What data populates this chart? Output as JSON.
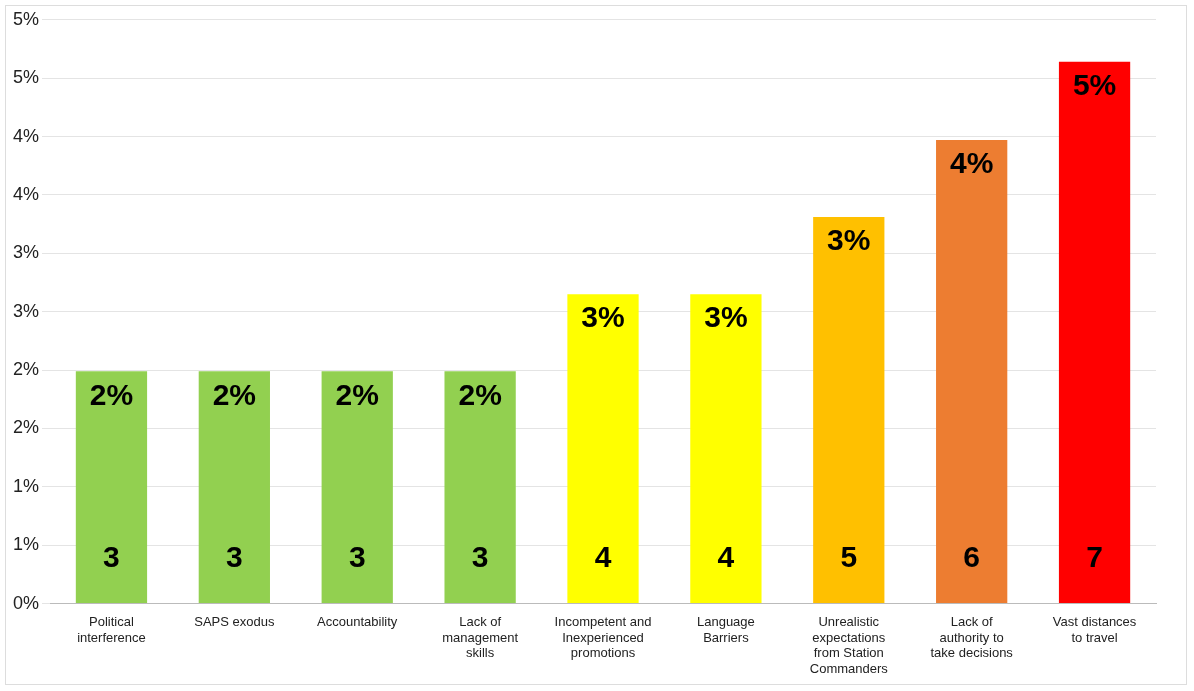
{
  "chart_data": {
    "type": "bar",
    "categories": [
      "Political interference",
      "SAPS exodus",
      "Accountability",
      "Lack of management skills",
      "Incompetent and Inexperienced promotions",
      "Language Barriers",
      "Unrealistic expectations from Station Commanders",
      "Lack of authority to take decisions",
      "Vast distances to travel"
    ],
    "values": [
      1.99,
      1.99,
      1.99,
      1.99,
      2.65,
      2.65,
      3.31,
      3.97,
      4.64
    ],
    "colors": [
      "#92d050",
      "#92d050",
      "#92d050",
      "#92d050",
      "#ffff00",
      "#ffff00",
      "#ffc000",
      "#ed7d31",
      "#ff0000"
    ],
    "value_labels": [
      "2%",
      "2%",
      "2%",
      "2%",
      "3%",
      "3%",
      "3%",
      "4%",
      "5%"
    ],
    "annotations": [
      "3",
      "3",
      "3",
      "3",
      "4",
      "4",
      "5",
      "6",
      "7"
    ],
    "ylim": [
      0,
      5
    ],
    "yticks": [
      {
        "value": 0,
        "label": "0%"
      },
      {
        "value": 0.5,
        "label": "1%"
      },
      {
        "value": 1,
        "label": "1%"
      },
      {
        "value": 1.5,
        "label": "2%"
      },
      {
        "value": 2,
        "label": "2%"
      },
      {
        "value": 2.5,
        "label": "3%"
      },
      {
        "value": 3,
        "label": "3%"
      },
      {
        "value": 3.5,
        "label": "4%"
      },
      {
        "value": 4,
        "label": "4%"
      },
      {
        "value": 4.5,
        "label": "5%"
      },
      {
        "value": 5,
        "label": "5%"
      }
    ],
    "grid": "y",
    "legend": false
  }
}
